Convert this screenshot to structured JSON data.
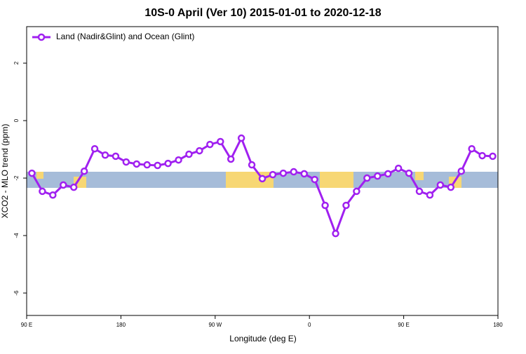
{
  "chart_data": {
    "type": "line",
    "title": "10S-0 April (Ver 10)   2015-01-01 to 2020-12-18",
    "x_label": "Longitude (deg E)",
    "y_label": "XCO2 - MLO trend (ppm)",
    "x": [
      95,
      105,
      115,
      125,
      135,
      145,
      155,
      165,
      175,
      185,
      195,
      205,
      215,
      225,
      235,
      245,
      255,
      265,
      275,
      285,
      295,
      305,
      315,
      325,
      335,
      345,
      355,
      365,
      375,
      385,
      395,
      405,
      415,
      425,
      435,
      445,
      455,
      465,
      475,
      485,
      495,
      505,
      515,
      525,
      535
    ],
    "series": [
      {
        "name": "Land (Nadir&Glint) and Ocean (Glint)",
        "color": "#a020f0",
        "values": [
          -1.83,
          -2.46,
          -2.59,
          -2.24,
          -2.32,
          -1.76,
          -0.98,
          -1.2,
          -1.24,
          -1.44,
          -1.51,
          -1.54,
          -1.56,
          -1.49,
          -1.37,
          -1.17,
          -1.05,
          -0.83,
          -0.73,
          -1.34,
          -0.61,
          -1.54,
          -2.02,
          -1.88,
          -1.83,
          -1.78,
          -1.85,
          -2.05,
          -2.95,
          -3.93,
          -2.95,
          -2.46,
          -2.0,
          -1.93,
          -1.85,
          -1.66,
          -1.83,
          -2.46,
          -2.59,
          -2.24,
          -2.32,
          -1.76,
          -0.98,
          -1.22,
          -1.24
        ]
      }
    ],
    "xlim": [
      90,
      540
    ],
    "xticks": [
      {
        "value": 90,
        "label": "90 E"
      },
      180,
      {
        "value": 270,
        "label": "90 W"
      },
      {
        "value": 360,
        "label": "0"
      },
      {
        "value": 450,
        "label": "90 E"
      },
      {
        "value": 540,
        "label": "180"
      }
    ],
    "ylim": [
      -6.78,
      3.27
    ],
    "yticks": [
      2,
      0,
      -2,
      -4,
      -6
    ],
    "legend": "top-left"
  }
}
